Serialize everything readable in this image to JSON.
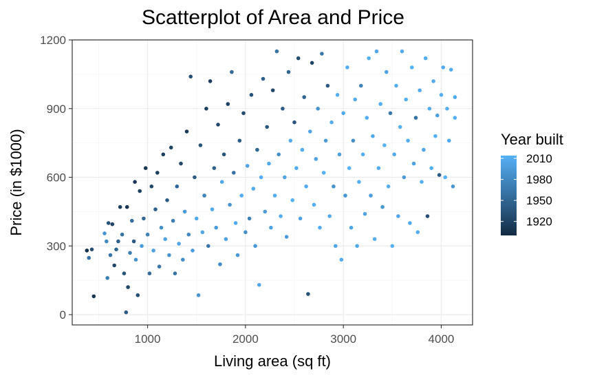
{
  "chart_data": {
    "type": "scatter",
    "title": "Scatterplot of Area and Price",
    "xlabel": "Living area (sq ft)",
    "ylabel": "Price (in $1000)",
    "xlim": [
      230,
      4320
    ],
    "ylim": [
      -45,
      1200
    ],
    "x_ticks": [
      1000,
      2000,
      3000,
      4000
    ],
    "y_ticks": [
      0,
      300,
      600,
      900,
      1200
    ],
    "grid": true,
    "legend": {
      "title": "Year built",
      "position": "right",
      "type": "colorbar",
      "range": [
        1900,
        2014
      ],
      "low_color": "#132b43",
      "high_color": "#56b1f7",
      "ticks": [
        2010,
        1980,
        1950,
        1920
      ]
    },
    "points": [
      [
        380,
        280,
        1905
      ],
      [
        400,
        248,
        1960
      ],
      [
        430,
        285,
        1930
      ],
      [
        450,
        80,
        1910
      ],
      [
        560,
        355,
        1990
      ],
      [
        580,
        320,
        1980
      ],
      [
        590,
        160,
        1970
      ],
      [
        600,
        400,
        1935
      ],
      [
        620,
        260,
        1965
      ],
      [
        640,
        395,
        1920
      ],
      [
        660,
        215,
        1925
      ],
      [
        680,
        285,
        1950
      ],
      [
        700,
        320,
        1945
      ],
      [
        720,
        470,
        1915
      ],
      [
        740,
        350,
        1960
      ],
      [
        760,
        180,
        1935
      ],
      [
        780,
        10,
        1940
      ],
      [
        790,
        470,
        1908
      ],
      [
        800,
        120,
        1925
      ],
      [
        820,
        270,
        1970
      ],
      [
        840,
        410,
        1955
      ],
      [
        860,
        320,
        1940
      ],
      [
        870,
        580,
        1912
      ],
      [
        880,
        240,
        1988
      ],
      [
        900,
        85,
        1930
      ],
      [
        920,
        540,
        1918
      ],
      [
        940,
        300,
        1995
      ],
      [
        960,
        420,
        1950
      ],
      [
        980,
        640,
        1910
      ],
      [
        1000,
        350,
        1975
      ],
      [
        1020,
        180,
        1955
      ],
      [
        1040,
        560,
        1925
      ],
      [
        1060,
        280,
        2000
      ],
      [
        1080,
        460,
        1945
      ],
      [
        1100,
        620,
        1916
      ],
      [
        1120,
        210,
        1965
      ],
      [
        1140,
        380,
        1985
      ],
      [
        1160,
        700,
        1915
      ],
      [
        1180,
        330,
        2003
      ],
      [
        1200,
        500,
        1940
      ],
      [
        1220,
        260,
        1990
      ],
      [
        1240,
        730,
        1920
      ],
      [
        1260,
        410,
        1970
      ],
      [
        1280,
        180,
        1960
      ],
      [
        1300,
        560,
        1950
      ],
      [
        1320,
        310,
        2005
      ],
      [
        1340,
        660,
        1925
      ],
      [
        1360,
        240,
        1985
      ],
      [
        1380,
        450,
        1995
      ],
      [
        1400,
        800,
        1912
      ],
      [
        1420,
        350,
        1980
      ],
      [
        1440,
        1040,
        1930
      ],
      [
        1460,
        280,
        1998
      ],
      [
        1480,
        600,
        1940
      ],
      [
        1500,
        420,
        2007
      ],
      [
        1520,
        85,
        1990
      ],
      [
        1540,
        740,
        1935
      ],
      [
        1560,
        360,
        2004
      ],
      [
        1580,
        520,
        1975
      ],
      [
        1600,
        900,
        1918
      ],
      [
        1620,
        300,
        1965
      ],
      [
        1640,
        1020,
        1915
      ],
      [
        1660,
        460,
        2008
      ],
      [
        1680,
        640,
        1945
      ],
      [
        1700,
        380,
        1994
      ],
      [
        1720,
        830,
        1925
      ],
      [
        1740,
        220,
        1982
      ],
      [
        1760,
        580,
        2006
      ],
      [
        1780,
        700,
        1935
      ],
      [
        1800,
        330,
        2002
      ],
      [
        1820,
        920,
        1920
      ],
      [
        1840,
        480,
        1990
      ],
      [
        1860,
        1060,
        1955
      ],
      [
        1880,
        620,
        1960
      ],
      [
        1900,
        400,
        2008
      ],
      [
        1920,
        260,
        1995
      ],
      [
        1940,
        760,
        1940
      ],
      [
        1960,
        520,
        2010
      ],
      [
        1980,
        880,
        1928
      ],
      [
        2000,
        360,
        1985
      ],
      [
        2020,
        650,
        2003
      ],
      [
        2040,
        420,
        1972
      ],
      [
        2060,
        960,
        1932
      ],
      [
        2080,
        550,
        2009
      ],
      [
        2100,
        300,
        1992
      ],
      [
        2120,
        720,
        1950
      ],
      [
        2140,
        130,
        2005
      ],
      [
        2160,
        600,
        2011
      ],
      [
        2180,
        1030,
        1945
      ],
      [
        2200,
        450,
        1998
      ],
      [
        2220,
        820,
        1938
      ],
      [
        2240,
        660,
        2007
      ],
      [
        2260,
        380,
        2001
      ],
      [
        2280,
        980,
        1925
      ],
      [
        2300,
        520,
        2012
      ],
      [
        2320,
        1150,
        1960
      ],
      [
        2340,
        700,
        1985
      ],
      [
        2360,
        430,
        2010
      ],
      [
        2380,
        900,
        1942
      ],
      [
        2400,
        600,
        2004
      ],
      [
        2420,
        340,
        1996
      ],
      [
        2440,
        1060,
        1950
      ],
      [
        2460,
        760,
        2009
      ],
      [
        2480,
        500,
        2013
      ],
      [
        2500,
        840,
        1935
      ],
      [
        2520,
        640,
        2006
      ],
      [
        2540,
        1120,
        1930
      ],
      [
        2560,
        420,
        2002
      ],
      [
        2580,
        720,
        2011
      ],
      [
        2600,
        950,
        1948
      ],
      [
        2620,
        560,
        2008
      ],
      [
        2640,
        90,
        1935
      ],
      [
        2660,
        800,
        2003
      ],
      [
        2680,
        1100,
        1920
      ],
      [
        2700,
        480,
        2012
      ],
      [
        2720,
        680,
        2001
      ],
      [
        2740,
        900,
        1990
      ],
      [
        2760,
        380,
        2009
      ],
      [
        2780,
        1140,
        1965
      ],
      [
        2800,
        620,
        2013
      ],
      [
        2820,
        760,
        1995
      ],
      [
        2840,
        1000,
        1940
      ],
      [
        2860,
        430,
        2007
      ],
      [
        2880,
        840,
        2010
      ],
      [
        2900,
        560,
        1988
      ],
      [
        2920,
        300,
        2005
      ],
      [
        2940,
        960,
        2012
      ],
      [
        2960,
        700,
        2000
      ],
      [
        2980,
        240,
        2011
      ],
      [
        3000,
        880,
        2008
      ],
      [
        3020,
        520,
        1992
      ],
      [
        3040,
        1080,
        2010
      ],
      [
        3060,
        640,
        2013
      ],
      [
        3080,
        380,
        2004
      ],
      [
        3100,
        760,
        1985
      ],
      [
        3120,
        940,
        2009
      ],
      [
        3140,
        300,
        2006
      ],
      [
        3160,
        580,
        2012
      ],
      [
        3180,
        1000,
        1975
      ],
      [
        3200,
        700,
        2011
      ],
      [
        3220,
        440,
        2003
      ],
      [
        3240,
        860,
        2010
      ],
      [
        3260,
        1120,
        2013
      ],
      [
        3280,
        520,
        1998
      ],
      [
        3300,
        780,
        2008
      ],
      [
        3320,
        330,
        2012
      ],
      [
        3340,
        1150,
        2005
      ],
      [
        3360,
        640,
        2009
      ],
      [
        3380,
        920,
        2011
      ],
      [
        3400,
        470,
        1990
      ],
      [
        3420,
        740,
        2013
      ],
      [
        3440,
        1060,
        2002
      ],
      [
        3460,
        560,
        2010
      ],
      [
        3480,
        880,
        1965
      ],
      [
        3500,
        300,
        2012
      ],
      [
        3520,
        700,
        2007
      ],
      [
        3540,
        1000,
        2011
      ],
      [
        3560,
        430,
        2004
      ],
      [
        3580,
        820,
        2013
      ],
      [
        3600,
        1150,
        2009
      ],
      [
        3620,
        600,
        1995
      ],
      [
        3640,
        940,
        2012
      ],
      [
        3660,
        760,
        2010
      ],
      [
        3680,
        400,
        2006
      ],
      [
        3700,
        1080,
        2013
      ],
      [
        3720,
        660,
        2001
      ],
      [
        3740,
        860,
        1960
      ],
      [
        3760,
        360,
        2011
      ],
      [
        3780,
        980,
        2008
      ],
      [
        3800,
        580,
        2013
      ],
      [
        3820,
        720,
        2004
      ],
      [
        3840,
        1120,
        2011
      ],
      [
        3860,
        430,
        1930
      ],
      [
        3880,
        900,
        2010
      ],
      [
        3900,
        640,
        2012
      ],
      [
        3920,
        1020,
        2007
      ],
      [
        3940,
        780,
        2013
      ],
      [
        3960,
        870,
        2000
      ],
      [
        3980,
        610,
        1940
      ],
      [
        4000,
        960,
        2011
      ],
      [
        4020,
        1080,
        2009
      ],
      [
        4040,
        600,
        2013
      ],
      [
        4060,
        900,
        2012
      ],
      [
        4080,
        760,
        2006
      ],
      [
        4100,
        1070,
        2010
      ],
      [
        4120,
        560,
        1990
      ],
      [
        4140,
        860,
        2013
      ],
      [
        4140,
        950,
        2008
      ]
    ]
  }
}
